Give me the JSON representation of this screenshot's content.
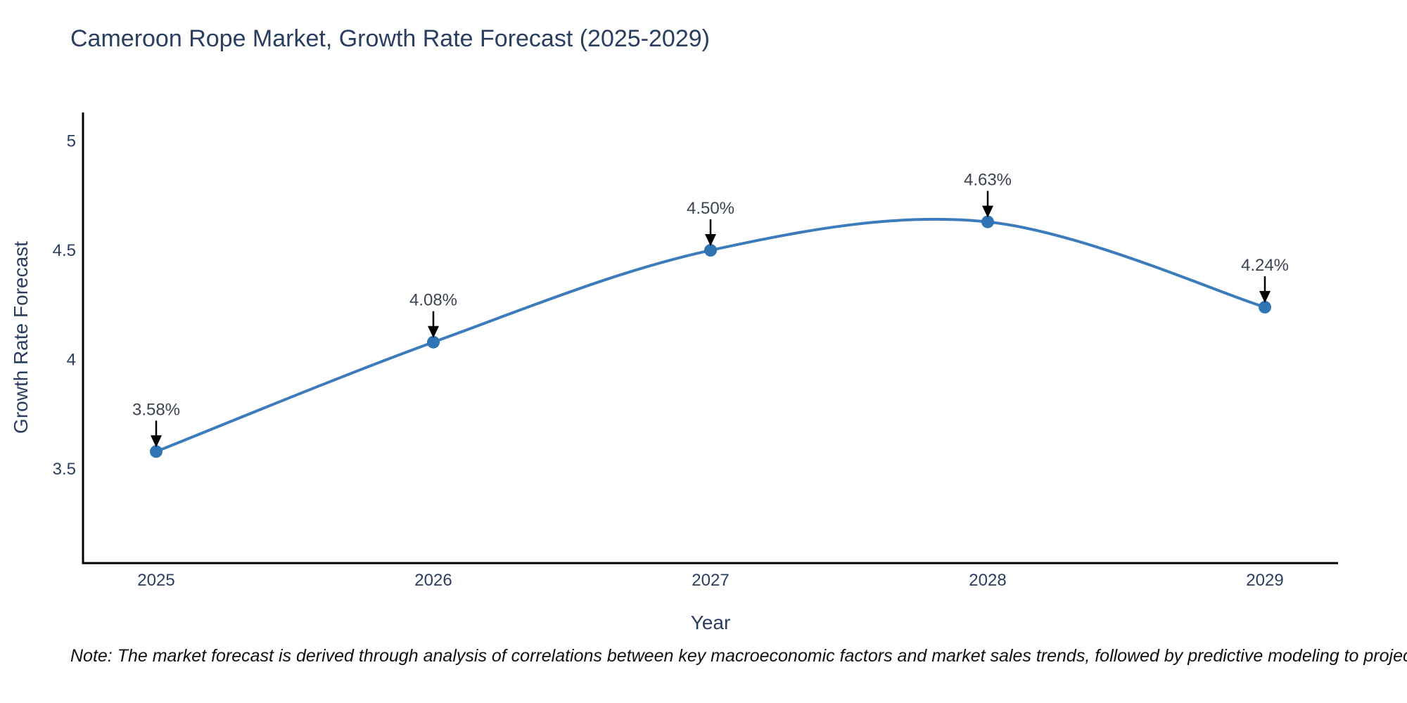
{
  "chart_data": {
    "type": "line",
    "title": "Cameroon Rope Market, Growth Rate Forecast (2025-2029)",
    "xlabel": "Year",
    "ylabel": "Growth Rate Forecast",
    "x": [
      "2025",
      "2026",
      "2027",
      "2028",
      "2029"
    ],
    "y": [
      3.58,
      4.08,
      4.5,
      4.63,
      4.24
    ],
    "point_labels": [
      "3.58%",
      "4.08%",
      "4.50%",
      "4.63%",
      "4.24%"
    ],
    "yticks": [
      3.5,
      4,
      4.5,
      5
    ],
    "ytick_labels": [
      "3.5",
      "4",
      "4.5",
      "5"
    ],
    "ylim": [
      3.07,
      5.13
    ],
    "line_shape": "spline",
    "grid": false,
    "legend": false,
    "marker_size": 9,
    "colors": {
      "line": "#3c7cbc",
      "marker": "#2f74b3",
      "axis": "#000000",
      "tick_text": "#2a3f5f",
      "annotation_text": "#3d4451",
      "arrow": "#000000",
      "title_text": "#2a3f5f"
    },
    "note": "Note: The market forecast is derived through analysis of correlations between key macroeconomic factors and market sales trends, followed by predictive modeling to project future sales"
  }
}
